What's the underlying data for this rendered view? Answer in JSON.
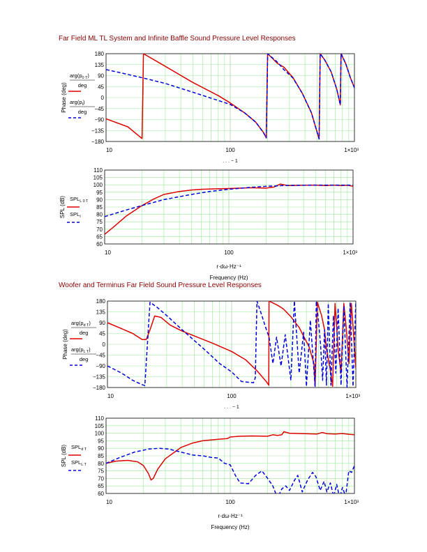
{
  "titles": {
    "top": "Far Field ML TL System and Infinite Baffle Sound Pressure Level Responses",
    "bottom": "Woofer and Terminus Far Field Sound Pressure Level Responses"
  },
  "colors": {
    "red": "#dd0000",
    "blue": "#0000dd",
    "grid": "#99ee99",
    "axis": "#000000"
  },
  "chart_data": [
    {
      "type": "line",
      "xscale": "log",
      "xlim": [
        10,
        1000
      ],
      "ylim": [
        -180,
        180
      ],
      "yticks": [
        "180",
        "135",
        "90",
        "45",
        "0",
        "−45",
        "−90",
        "−135",
        "−180"
      ],
      "xticks": [
        "10",
        "100",
        "1×10³"
      ],
      "ylabel": "Phase (deg)",
      "xlabel_partial": ". . . − 1",
      "legend": [
        {
          "num": "arg(p",
          "sub": "0",
          "sub2": "T",
          "den": "deg"
        },
        {
          "num": "arg(p",
          "sub": "I",
          "sub2": "",
          "den": "deg"
        }
      ],
      "series": [
        {
          "style": "solid",
          "color": "red",
          "x": [
            10,
            15,
            19.5,
            20,
            30,
            50,
            80,
            100,
            130,
            160,
            185,
            195,
            200,
            240,
            270,
            320,
            380,
            450,
            520,
            530,
            580,
            650,
            720,
            770,
            780,
            850,
            930,
            1000
          ],
          "y": [
            -87,
            -120,
            -168,
            180,
            128,
            62,
            8,
            -22,
            -62,
            -100,
            -143,
            -165,
            180,
            140,
            125,
            82,
            18,
            -62,
            -170,
            180,
            152,
            105,
            35,
            -30,
            180,
            140,
            80,
            40
          ]
        },
        {
          "style": "dashed",
          "color": "blue",
          "x": [
            10,
            15,
            20,
            30,
            50,
            80,
            100,
            130,
            160,
            185,
            195,
            200,
            240,
            270,
            320,
            380,
            450,
            520,
            530,
            580,
            650,
            720,
            770,
            780,
            850,
            930,
            1000
          ],
          "y": [
            115,
            95,
            80,
            58,
            22,
            -12,
            -28,
            -62,
            -100,
            -143,
            -165,
            180,
            145,
            115,
            80,
            18,
            -62,
            -170,
            180,
            152,
            105,
            35,
            -30,
            180,
            140,
            80,
            40
          ]
        }
      ]
    },
    {
      "type": "line",
      "xscale": "log",
      "xlim": [
        10,
        1000
      ],
      "ylim": [
        60,
        110
      ],
      "yticks": [
        "110",
        "105",
        "100",
        "95",
        "90",
        "85",
        "80",
        "75",
        "70",
        "65",
        "60"
      ],
      "xticks": [
        "10",
        "100",
        "1×10³"
      ],
      "ylabel": "SPL (dB)",
      "xlabel": "r·dω·Hz⁻¹",
      "xlabel2": "Frequency (Hz)",
      "legend": [
        {
          "label": "SPL",
          "sub": "L",
          "sub2": "0",
          "sub3": "T"
        },
        {
          "label": "SPL",
          "sub": "I",
          "sub2": "",
          "sub3": ""
        }
      ],
      "series": [
        {
          "style": "solid",
          "color": "red",
          "x": [
            10,
            12,
            15,
            20,
            25,
            30,
            40,
            50,
            60,
            80,
            100,
            150,
            200,
            230,
            260,
            300,
            400,
            500,
            600,
            700,
            800,
            900,
            1000
          ],
          "y": [
            66.5,
            72,
            79,
            86,
            90.5,
            93.5,
            95.5,
            96.5,
            97,
            97.3,
            97.5,
            98,
            97.8,
            98.5,
            100.5,
            99.5,
            99.7,
            99.8,
            99.5,
            99.8,
            99.5,
            99.7,
            99
          ]
        },
        {
          "style": "dashed",
          "color": "blue",
          "x": [
            10,
            15,
            20,
            30,
            50,
            70,
            100,
            150,
            200,
            300,
            400,
            500,
            700,
            1000
          ],
          "y": [
            78.5,
            83,
            86,
            90,
            93.5,
            95.5,
            97,
            98.3,
            99,
            99.6,
            99.7,
            99.8,
            99.8,
            99.8
          ]
        }
      ]
    },
    {
      "type": "line",
      "xscale": "log",
      "xlim": [
        10,
        1000
      ],
      "ylim": [
        -180,
        180
      ],
      "yticks": [
        "180",
        "135",
        "90",
        "45",
        "0",
        "−45",
        "−90",
        "−135",
        "−180"
      ],
      "xticks": [
        "10",
        "100",
        "1×10³"
      ],
      "ylabel": "Phase (deg)",
      "xlabel_partial": ". . . − 1",
      "legend": [
        {
          "num": "arg(p",
          "sub": "d",
          "sub2": "T",
          "den": "deg"
        },
        {
          "num": "arg(p",
          "sub": "L",
          "sub2": "T",
          "den": "deg"
        }
      ],
      "series": [
        {
          "style": "solid",
          "color": "red",
          "x": [
            10,
            13,
            16,
            19,
            20.5,
            22,
            24,
            27,
            32,
            40,
            50,
            70,
            100,
            130,
            160,
            190,
            199,
            200,
            230,
            260,
            300,
            350,
            420,
            460,
            470,
            490,
            530,
            560,
            580,
            620,
            650,
            680,
            700,
            720,
            760,
            800,
            840,
            880,
            920,
            960,
            1000
          ],
          "y": [
            90,
            65,
            45,
            20,
            20,
            60,
            118,
            112,
            80,
            55,
            35,
            5,
            -30,
            -65,
            -110,
            -155,
            -170,
            180,
            165,
            148,
            115,
            70,
            -10,
            -80,
            -175,
            175,
            120,
            60,
            -20,
            -100,
            -175,
            170,
            80,
            -20,
            -120,
            170,
            60,
            -80,
            170,
            40,
            -100
          ]
        },
        {
          "style": "dashed",
          "color": "blue",
          "x": [
            10,
            13,
            16,
            19,
            20,
            22,
            25,
            30,
            40,
            60,
            80,
            100,
            120,
            150,
            155,
            160,
            175,
            185,
            200,
            215,
            230,
            250,
            270,
            300,
            320,
            350,
            380,
            400,
            430,
            470,
            480,
            500,
            520,
            540,
            560,
            580,
            600,
            630,
            660,
            690,
            720,
            760,
            800,
            850,
            900,
            950,
            1000
          ],
          "y": [
            -90,
            -120,
            -150,
            -168,
            -172,
            175,
            155,
            120,
            60,
            -20,
            -80,
            -115,
            -155,
            -160,
            -140,
            180,
            120,
            80,
            30,
            -80,
            30,
            -90,
            40,
            -150,
            180,
            -120,
            50,
            -175,
            100,
            -175,
            180,
            100,
            0,
            -150,
            60,
            -170,
            170,
            -170,
            120,
            -120,
            150,
            -170,
            160,
            -178,
            175,
            -175,
            180
          ]
        }
      ]
    },
    {
      "type": "line",
      "xscale": "log",
      "xlim": [
        10,
        1000
      ],
      "ylim": [
        60,
        110
      ],
      "yticks": [
        "110",
        "105",
        "100",
        "95",
        "90",
        "85",
        "80",
        "75",
        "70",
        "65",
        "60"
      ],
      "xticks": [
        "10",
        "100",
        "1×10³"
      ],
      "ylabel": "SPL (dB)",
      "xlabel": "r·dω·Hz⁻¹",
      "xlabel2": "Frequency (Hz)",
      "legend": [
        {
          "label": "SPL",
          "sub": "d",
          "sub2": "T",
          "sub3": ""
        },
        {
          "label": "SPL",
          "sub": "L",
          "sub2": "T",
          "sub3": ""
        }
      ],
      "series": [
        {
          "style": "solid",
          "color": "red",
          "x": [
            10,
            12,
            15,
            18,
            20,
            22,
            23,
            24,
            26,
            30,
            40,
            50,
            60,
            80,
            95,
            100,
            120,
            150,
            200,
            220,
            240,
            260,
            270,
            300,
            400,
            500,
            550,
            600,
            700,
            800,
            900,
            1000
          ],
          "y": [
            80,
            81.5,
            82,
            81,
            78.5,
            73,
            69,
            70,
            76,
            83,
            90.5,
            93.5,
            95,
            96,
            96.5,
            97.5,
            98,
            98.2,
            98,
            99,
            98.5,
            99,
            101,
            100,
            99.7,
            99.5,
            100.5,
            99.7,
            99.5,
            99.8,
            99.3,
            99
          ]
        },
        {
          "style": "dashed",
          "color": "blue",
          "x": [
            10,
            13,
            17,
            22,
            27,
            32,
            40,
            50,
            60,
            70,
            80,
            90,
            100,
            110,
            120,
            140,
            160,
            180,
            200,
            220,
            240,
            260,
            280,
            300,
            330,
            350,
            380,
            420,
            460,
            490,
            530,
            570,
            600,
            640,
            680,
            720,
            760,
            800,
            850,
            900,
            950,
            1000
          ],
          "y": [
            80,
            84,
            87.5,
            89.5,
            90,
            89.5,
            87.5,
            85.5,
            85,
            84,
            83.5,
            80,
            79,
            72,
            67,
            66.5,
            72,
            75,
            70,
            65,
            57,
            63,
            65,
            62,
            69,
            72,
            61,
            69,
            74,
            71,
            62,
            68,
            61,
            67,
            58,
            66,
            57,
            64,
            58,
            75,
            74,
            78.5
          ]
        }
      ]
    }
  ]
}
